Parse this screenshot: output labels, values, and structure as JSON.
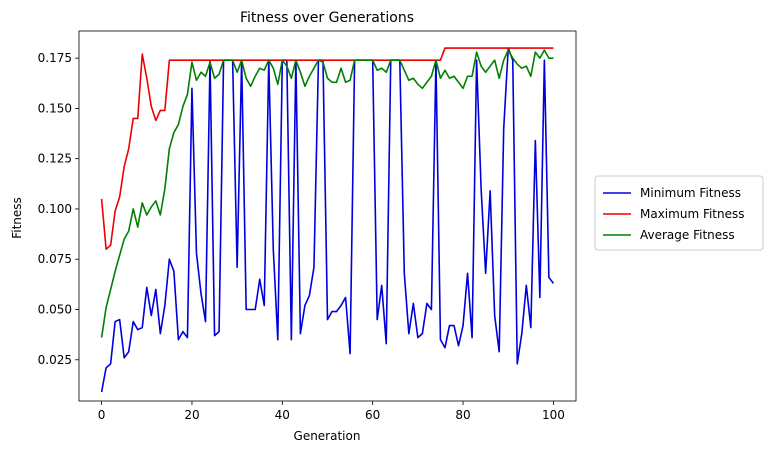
{
  "chart_data": {
    "type": "line",
    "title": "Fitness over Generations",
    "xlabel": "Generation",
    "ylabel": "Fitness",
    "xlim": [
      -5,
      105
    ],
    "ylim": [
      0.0045,
      0.1885
    ],
    "xticks": [
      0,
      20,
      40,
      60,
      80,
      100
    ],
    "yticks": [
      0.025,
      0.05,
      0.075,
      0.1,
      0.125,
      0.15,
      0.175
    ],
    "ytick_labels": [
      "0.025",
      "0.050",
      "0.075",
      "0.100",
      "0.125",
      "0.150",
      "0.175"
    ],
    "grid": false,
    "legend": "outside-right",
    "x": [
      0,
      1,
      2,
      3,
      4,
      5,
      6,
      7,
      8,
      9,
      10,
      11,
      12,
      13,
      14,
      15,
      16,
      17,
      18,
      19,
      20,
      21,
      22,
      23,
      24,
      25,
      26,
      27,
      28,
      29,
      30,
      31,
      32,
      33,
      34,
      35,
      36,
      37,
      38,
      39,
      40,
      41,
      42,
      43,
      44,
      45,
      46,
      47,
      48,
      49,
      50,
      51,
      52,
      53,
      54,
      55,
      56,
      57,
      58,
      59,
      60,
      61,
      62,
      63,
      64,
      65,
      66,
      67,
      68,
      69,
      70,
      71,
      72,
      73,
      74,
      75,
      76,
      77,
      78,
      79,
      80,
      81,
      82,
      83,
      84,
      85,
      86,
      87,
      88,
      89,
      90,
      91,
      92,
      93,
      94,
      95,
      96,
      97,
      98,
      99,
      100
    ],
    "series": [
      {
        "name": "Minimum Fitness",
        "color": "#0000dd",
        "values": [
          0.009,
          0.021,
          0.023,
          0.044,
          0.045,
          0.026,
          0.029,
          0.044,
          0.04,
          0.041,
          0.061,
          0.047,
          0.06,
          0.038,
          0.052,
          0.075,
          0.069,
          0.035,
          0.039,
          0.036,
          0.16,
          0.078,
          0.058,
          0.044,
          0.174,
          0.037,
          0.039,
          0.174,
          0.174,
          0.174,
          0.071,
          0.174,
          0.05,
          0.05,
          0.05,
          0.065,
          0.052,
          0.174,
          0.08,
          0.035,
          0.174,
          0.174,
          0.035,
          0.174,
          0.038,
          0.052,
          0.057,
          0.071,
          0.174,
          0.174,
          0.045,
          0.049,
          0.049,
          0.052,
          0.056,
          0.028,
          0.174,
          0.174,
          0.174,
          0.174,
          0.174,
          0.045,
          0.062,
          0.033,
          0.174,
          0.174,
          0.174,
          0.068,
          0.038,
          0.053,
          0.036,
          0.038,
          0.053,
          0.05,
          0.174,
          0.035,
          0.031,
          0.042,
          0.042,
          0.032,
          0.042,
          0.068,
          0.036,
          0.174,
          0.11,
          0.068,
          0.109,
          0.047,
          0.029,
          0.14,
          0.18,
          0.174,
          0.023,
          0.038,
          0.062,
          0.041,
          0.134,
          0.056,
          0.174,
          0.066,
          0.063
        ]
      },
      {
        "name": "Maximum Fitness",
        "color": "#ee0000",
        "values": [
          0.105,
          0.08,
          0.082,
          0.099,
          0.106,
          0.121,
          0.13,
          0.145,
          0.145,
          0.177,
          0.165,
          0.151,
          0.144,
          0.149,
          0.149,
          0.174,
          0.174,
          0.174,
          0.174,
          0.174,
          0.174,
          0.174,
          0.174,
          0.174,
          0.174,
          0.174,
          0.174,
          0.174,
          0.174,
          0.174,
          0.174,
          0.174,
          0.174,
          0.174,
          0.174,
          0.174,
          0.174,
          0.174,
          0.174,
          0.174,
          0.174,
          0.174,
          0.174,
          0.174,
          0.174,
          0.174,
          0.174,
          0.174,
          0.174,
          0.174,
          0.174,
          0.174,
          0.174,
          0.174,
          0.174,
          0.174,
          0.174,
          0.174,
          0.174,
          0.174,
          0.174,
          0.174,
          0.174,
          0.174,
          0.174,
          0.174,
          0.174,
          0.174,
          0.174,
          0.174,
          0.174,
          0.174,
          0.174,
          0.174,
          0.174,
          0.174,
          0.18,
          0.18,
          0.18,
          0.18,
          0.18,
          0.18,
          0.18,
          0.18,
          0.18,
          0.18,
          0.18,
          0.18,
          0.18,
          0.18,
          0.18,
          0.18,
          0.18,
          0.18,
          0.18,
          0.18,
          0.18,
          0.18,
          0.18,
          0.18,
          0.18
        ]
      },
      {
        "name": "Average Fitness",
        "color": "#008000",
        "values": [
          0.036,
          0.051,
          0.06,
          0.069,
          0.077,
          0.085,
          0.089,
          0.1,
          0.091,
          0.103,
          0.097,
          0.101,
          0.104,
          0.097,
          0.11,
          0.13,
          0.138,
          0.142,
          0.151,
          0.157,
          0.173,
          0.164,
          0.168,
          0.166,
          0.173,
          0.165,
          0.167,
          0.174,
          0.174,
          0.174,
          0.168,
          0.174,
          0.165,
          0.161,
          0.166,
          0.17,
          0.169,
          0.174,
          0.17,
          0.162,
          0.174,
          0.171,
          0.165,
          0.174,
          0.168,
          0.161,
          0.166,
          0.17,
          0.174,
          0.173,
          0.165,
          0.163,
          0.163,
          0.17,
          0.163,
          0.164,
          0.174,
          0.174,
          0.174,
          0.174,
          0.174,
          0.169,
          0.17,
          0.168,
          0.174,
          0.174,
          0.174,
          0.169,
          0.164,
          0.165,
          0.162,
          0.16,
          0.163,
          0.166,
          0.174,
          0.165,
          0.169,
          0.165,
          0.166,
          0.163,
          0.16,
          0.166,
          0.166,
          0.178,
          0.171,
          0.168,
          0.171,
          0.174,
          0.165,
          0.174,
          0.179,
          0.175,
          0.172,
          0.17,
          0.171,
          0.166,
          0.178,
          0.175,
          0.179,
          0.175,
          0.175
        ]
      }
    ]
  }
}
